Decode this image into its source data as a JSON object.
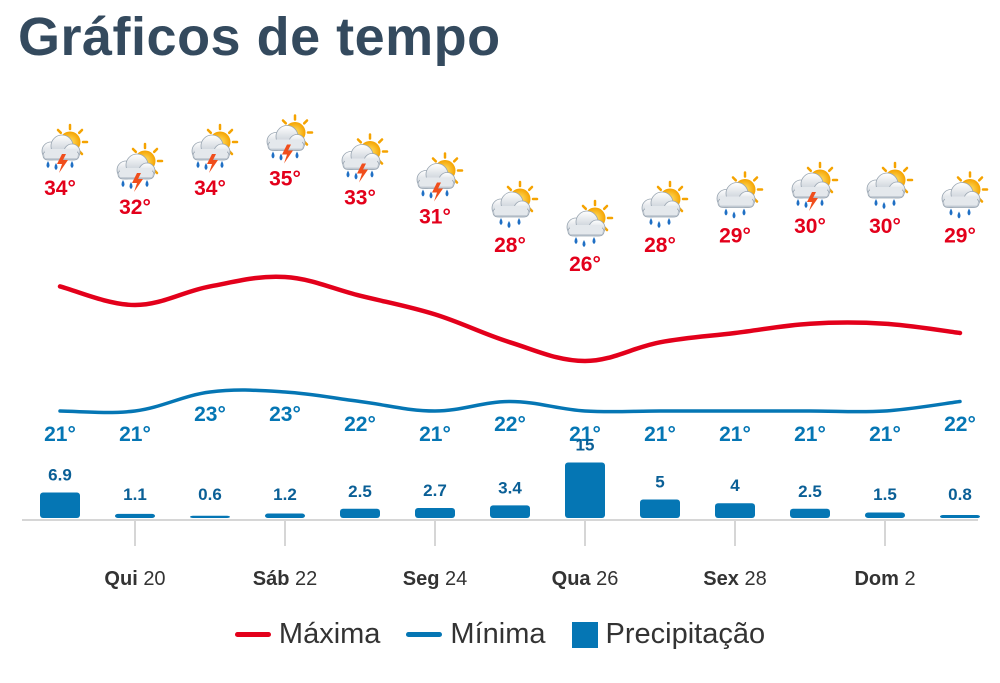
{
  "page": {
    "title": "Gráficos de tempo"
  },
  "colors": {
    "max": "#e3001b",
    "min": "#0576b4",
    "precip": "#0576b4",
    "axis": "#d6d6d6",
    "title": "#344a5e"
  },
  "chart_data": {
    "type": "line",
    "days": 13,
    "xticks": [
      {
        "index": 1,
        "bold": "Qui",
        "normal": "20"
      },
      {
        "index": 3,
        "bold": "Sáb",
        "normal": "22"
      },
      {
        "index": 5,
        "bold": "Seg",
        "normal": "24"
      },
      {
        "index": 7,
        "bold": "Qua",
        "normal": "26"
      },
      {
        "index": 9,
        "bold": "Sex",
        "normal": "28"
      },
      {
        "index": 11,
        "bold": "Dom",
        "normal": "2"
      }
    ],
    "series": [
      {
        "name": "Máxima",
        "unit": "°",
        "values": [
          34,
          32,
          34,
          35,
          33,
          31,
          28,
          26,
          28,
          29,
          30,
          30,
          29
        ]
      },
      {
        "name": "Mínima",
        "unit": "°",
        "values": [
          21,
          21,
          23,
          23,
          22,
          21,
          22,
          21,
          21,
          21,
          21,
          21,
          22
        ]
      },
      {
        "name": "Precipitação",
        "unit": "mm",
        "values": [
          "6.9",
          "1.1",
          "0.6",
          "1.2",
          "2.5",
          "2.7",
          "3.4",
          "15",
          "5",
          "4",
          "2.5",
          "1.5",
          "0.8"
        ]
      }
    ],
    "icons": [
      "thunder-rain-icon",
      "thunder-rain-icon",
      "thunder-rain-icon",
      "thunder-rain-icon",
      "thunder-rain-icon",
      "thunder-rain-icon",
      "sun-rain-icon",
      "sun-rain-icon",
      "sun-rain-icon",
      "sun-rain-icon",
      "thunder-rain-icon",
      "sun-rain-icon",
      "sun-rain-icon"
    ],
    "legend": {
      "placement": "bottom-center"
    }
  }
}
